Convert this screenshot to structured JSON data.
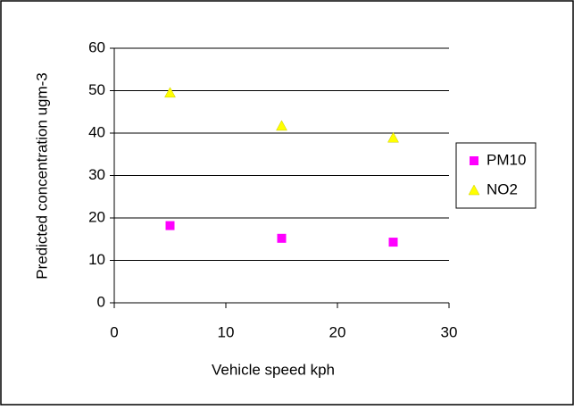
{
  "chart_data": {
    "type": "scatter",
    "x_label": "Vehicle speed kph",
    "y_label": "Predicted concentration ugm-3",
    "series": [
      {
        "name": "PM10",
        "color": "#ff00ff",
        "marker": "square",
        "x": [
          5,
          15,
          25
        ],
        "values": [
          18.2,
          15.2,
          14.3
        ]
      },
      {
        "name": "NO2",
        "color": "#ffff00",
        "marker": "triangle",
        "x": [
          5,
          15,
          25
        ],
        "values": [
          49.5,
          41.7,
          38.9
        ]
      }
    ],
    "xlim": [
      0,
      30
    ],
    "xticks": [
      0,
      10,
      20,
      30
    ],
    "ylim": [
      0,
      60
    ],
    "yticks": [
      0,
      10,
      20,
      30,
      40,
      50,
      60
    ],
    "grid": true,
    "legend": "right"
  }
}
